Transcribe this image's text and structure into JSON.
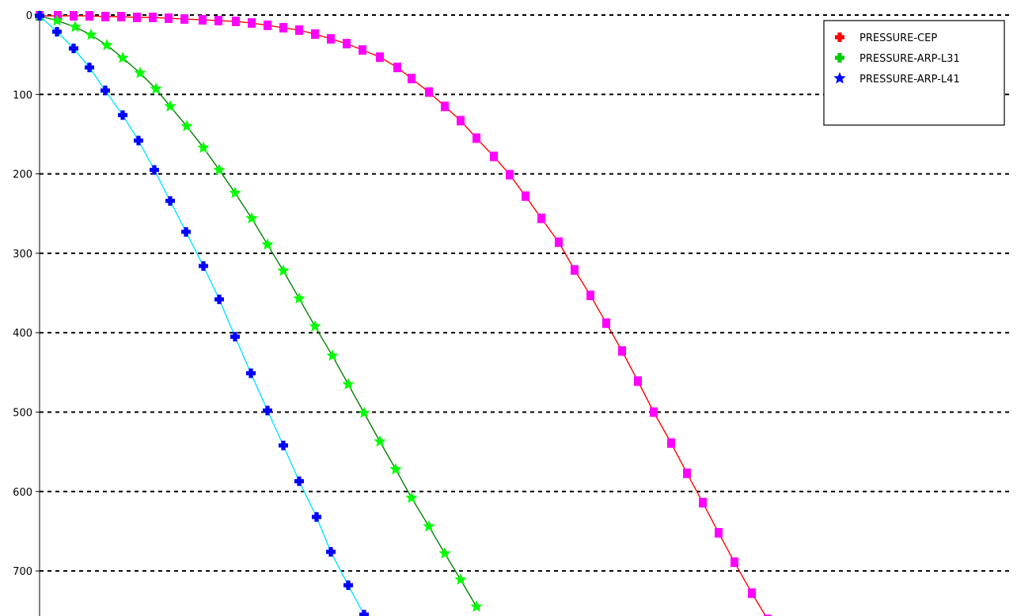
{
  "chart_data": {
    "type": "line",
    "title": "",
    "xlabel": "",
    "ylabel": "",
    "ylim": [
      0,
      760
    ],
    "y_inverted": true,
    "y_ticks": [
      "0",
      "100",
      "200",
      "300",
      "400",
      "500",
      "600",
      "700"
    ],
    "y_tick_values": [
      0,
      100,
      200,
      300,
      400,
      500,
      600,
      700
    ],
    "x_ticks": [],
    "grid": "horizontal dashed",
    "legend_position": "top-right",
    "series": [
      {
        "name": "PRESSURE-CEP",
        "line_color": "#ff0000",
        "marker_color": "#ff00ff",
        "legend_marker_color": "#ff0000",
        "marker": "square",
        "legend_marker": "plus",
        "points": [
          [
            50,
            1
          ],
          [
            73,
            1
          ],
          [
            93,
            1
          ],
          [
            113,
            1
          ],
          [
            133,
            2
          ],
          [
            153,
            2
          ],
          [
            173,
            3
          ],
          [
            193,
            3
          ],
          [
            213,
            4
          ],
          [
            233,
            5
          ],
          [
            256,
            6
          ],
          [
            276,
            7
          ],
          [
            298,
            8
          ],
          [
            318,
            10
          ],
          [
            338,
            13
          ],
          [
            358,
            16
          ],
          [
            378,
            19
          ],
          [
            398,
            24
          ],
          [
            418,
            30
          ],
          [
            438,
            36
          ],
          [
            458,
            44
          ],
          [
            480,
            53
          ],
          [
            502,
            66
          ],
          [
            520,
            80
          ],
          [
            542,
            97
          ],
          [
            562,
            115
          ],
          [
            582,
            133
          ],
          [
            602,
            155
          ],
          [
            624,
            178
          ],
          [
            644,
            201
          ],
          [
            664,
            228
          ],
          [
            684,
            256
          ],
          [
            706,
            286
          ],
          [
            726,
            321
          ],
          [
            746,
            353
          ],
          [
            766,
            388
          ],
          [
            786,
            423
          ],
          [
            806,
            461
          ],
          [
            826,
            500
          ],
          [
            848,
            539
          ],
          [
            868,
            577
          ],
          [
            888,
            614
          ],
          [
            908,
            652
          ],
          [
            928,
            689
          ],
          [
            950,
            728
          ],
          [
            970,
            761
          ]
        ]
      },
      {
        "name": "PRESSURE-ARP-L31",
        "line_color": "#008000",
        "marker_color": "#00ff00",
        "legend_marker_color": "#00cc00",
        "marker": "star",
        "legend_marker": "plus",
        "points": [
          [
            50,
            1
          ],
          [
            72,
            7
          ],
          [
            95,
            15
          ],
          [
            115,
            25
          ],
          [
            135,
            38
          ],
          [
            155,
            54
          ],
          [
            177,
            73
          ],
          [
            197,
            93
          ],
          [
            215,
            115
          ],
          [
            236,
            140
          ],
          [
            257,
            167
          ],
          [
            277,
            195
          ],
          [
            297,
            224
          ],
          [
            318,
            256
          ],
          [
            338,
            289
          ],
          [
            358,
            322
          ],
          [
            378,
            357
          ],
          [
            398,
            392
          ],
          [
            420,
            429
          ],
          [
            440,
            465
          ],
          [
            460,
            501
          ],
          [
            480,
            537
          ],
          [
            500,
            572
          ],
          [
            520,
            608
          ],
          [
            542,
            644
          ],
          [
            562,
            678
          ],
          [
            582,
            711
          ],
          [
            602,
            745
          ]
        ]
      },
      {
        "name": "PRESSURE-ARP-L41",
        "line_color": "#00e5ff",
        "marker_color": "#0000ff",
        "legend_marker_color": "#0000ff",
        "marker": "plus",
        "legend_marker": "star",
        "points": [
          [
            50,
            1
          ],
          [
            72,
            21
          ],
          [
            93,
            42
          ],
          [
            113,
            66
          ],
          [
            133,
            95
          ],
          [
            155,
            126
          ],
          [
            175,
            158
          ],
          [
            195,
            195
          ],
          [
            215,
            234
          ],
          [
            235,
            273
          ],
          [
            257,
            316
          ],
          [
            277,
            358
          ],
          [
            297,
            405
          ],
          [
            317,
            451
          ],
          [
            338,
            498
          ],
          [
            358,
            542
          ],
          [
            378,
            587
          ],
          [
            400,
            632
          ],
          [
            418,
            676
          ],
          [
            440,
            718
          ],
          [
            460,
            755
          ]
        ]
      }
    ]
  }
}
